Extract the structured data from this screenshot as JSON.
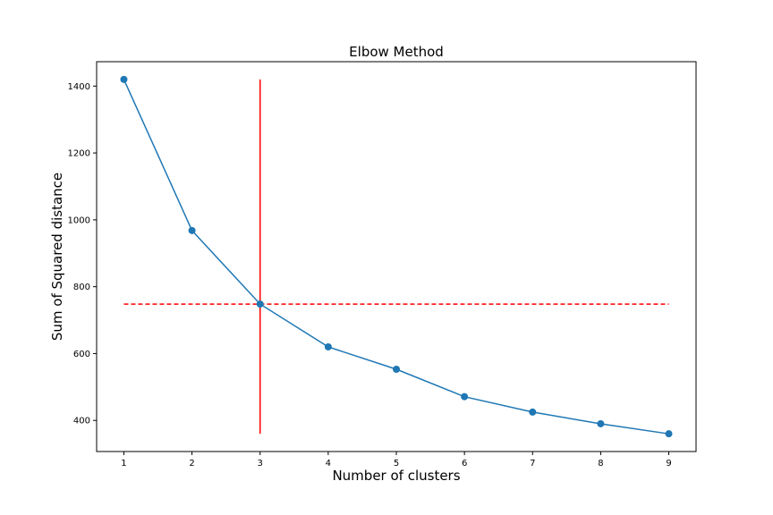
{
  "chart_data": {
    "type": "line",
    "title": "Elbow Method",
    "xlabel": "Number of clusters",
    "ylabel": "Sum of Squared distance",
    "x": [
      1,
      2,
      3,
      4,
      5,
      6,
      7,
      8,
      9
    ],
    "series": [
      {
        "values": [
          1420,
          968,
          748,
          620,
          553,
          471,
          425,
          390,
          360
        ],
        "color": "#1f77b4",
        "marker": "circle"
      }
    ],
    "xticks": [
      "1",
      "2",
      "3",
      "4",
      "5",
      "6",
      "7",
      "8",
      "9"
    ],
    "yticks": [
      "400",
      "600",
      "800",
      "1000",
      "1200",
      "1400"
    ],
    "xlim": [
      0.6,
      9.4
    ],
    "ylim": [
      307,
      1473
    ],
    "grid": false,
    "annotations": {
      "vertical_line": {
        "x": 3,
        "y_from": 360,
        "y_to": 1420,
        "color": "#ff0000",
        "style": "solid"
      },
      "horizontal_line": {
        "y": 748,
        "x_from": 1,
        "x_to": 9,
        "color": "#ff0000",
        "style": "dashed"
      }
    }
  }
}
